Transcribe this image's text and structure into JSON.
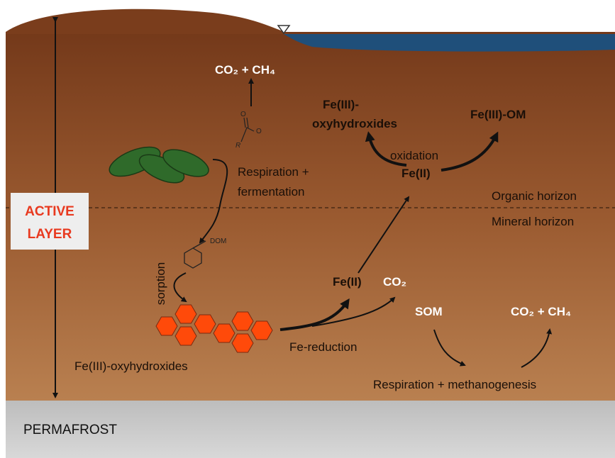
{
  "labels": {
    "top_products": "CO₂ + CH₄",
    "molecule_r": "R",
    "molecule_o1": "O",
    "molecule_o2": "O",
    "fe3_oxy_top": [
      "Fe(III)-",
      "oxyhydroxides"
    ],
    "fe3_om": "Fe(III)-OM",
    "oxidation": "oxidation",
    "fe2_top": "Fe(II)",
    "respiration_fermentation": [
      "Respiration +",
      "fermentation"
    ],
    "organic_horizon": "Organic horizon",
    "mineral_horizon": "Mineral horizon",
    "active_layer": [
      "ACTIVE",
      "LAYER"
    ],
    "dom": "DOM",
    "sorption": "sorption",
    "fe2_bottom": "Fe(II)",
    "co2": "CO₂",
    "som": "SOM",
    "bottom_products": "CO₂ + CH₄",
    "fe_reduction": "Fe-reduction",
    "fe3_oxy_bottom": "Fe(III)-oxyhydroxides",
    "respiration_methanogenesis": "Respiration + methanogenesis",
    "permafrost": "PERMAFROST"
  }
}
